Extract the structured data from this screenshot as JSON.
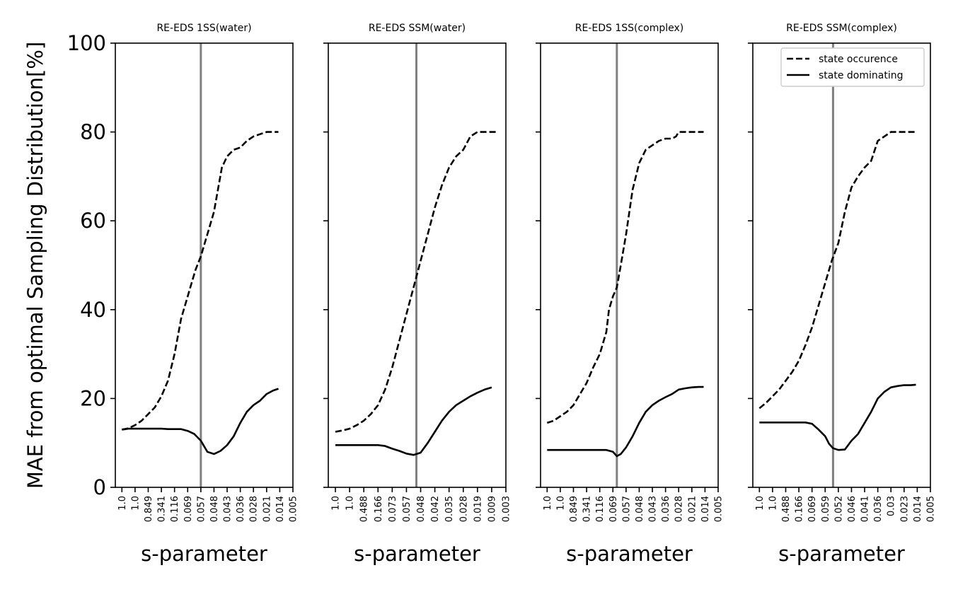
{
  "figure": {
    "ylabel": "MAE from optimal Sampling Distribution[%]"
  },
  "legend": {
    "placement": "upper right of last panel",
    "entries": [
      "state occurence",
      "state dominating"
    ]
  },
  "colors": {
    "line": "#000000",
    "vline": "#808080"
  },
  "chart_data": [
    {
      "type": "line",
      "title": "RE-EDS 1SS(water)",
      "xlabel": "s-parameter",
      "ylim": [
        0,
        100
      ],
      "yticks": [
        0,
        20,
        40,
        60,
        80,
        100
      ],
      "xtick_labels": [
        "1.0",
        "1.0",
        "0.849",
        "0.341",
        "0.116",
        "0.069",
        "0.057",
        "0.048",
        "0.043",
        "0.036",
        "0.028",
        "0.021",
        "0.014",
        "0.005"
      ],
      "xlim": [
        -0.5,
        13
      ],
      "vline_x": 6,
      "series": [
        {
          "name": "state occurence",
          "style": "dashed",
          "x": [
            0,
            0.5,
            1,
            1.5,
            2,
            2.5,
            3,
            3.5,
            4,
            4.5,
            5,
            5.3,
            5.6,
            6,
            6.3,
            6.6,
            7,
            7.3,
            7.6,
            8,
            8.5,
            9,
            9.5,
            10,
            10.5,
            11,
            11.5,
            11.9
          ],
          "y": [
            13,
            13.3,
            14,
            15,
            16.5,
            18,
            20.5,
            24,
            30,
            38,
            43,
            46,
            49,
            52,
            55,
            58,
            62,
            67,
            72,
            74.5,
            76,
            76.5,
            78,
            79,
            79.5,
            80,
            80,
            80
          ]
        },
        {
          "name": "state dominating",
          "style": "solid",
          "x": [
            0,
            0.5,
            1,
            1.5,
            2,
            2.5,
            3,
            3.5,
            4,
            4.5,
            5,
            5.5,
            6,
            6.5,
            7,
            7.5,
            8,
            8.5,
            9,
            9.5,
            10,
            10.5,
            11,
            11.5,
            11.9
          ],
          "y": [
            13,
            13.2,
            13.2,
            13.2,
            13.2,
            13.2,
            13.2,
            13.1,
            13.1,
            13.1,
            12.7,
            12,
            10.5,
            8,
            7.5,
            8.2,
            9.5,
            11.5,
            14.5,
            17,
            18.5,
            19.5,
            21,
            21.8,
            22.2
          ]
        }
      ]
    },
    {
      "type": "line",
      "title": "RE-EDS SSM(water)",
      "xlabel": "s-parameter",
      "ylim": [
        0,
        100
      ],
      "yticks": [
        0,
        20,
        40,
        60,
        80,
        100
      ],
      "xtick_labels": [
        "1.0",
        "1.0",
        "0.488",
        "0.166",
        "0.073",
        "0.057",
        "0.048",
        "0.042",
        "0.035",
        "0.028",
        "0.019",
        "0.009",
        "0.003"
      ],
      "xlim": [
        -0.5,
        12
      ],
      "vline_x": 5.7,
      "series": [
        {
          "name": "state occurence",
          "style": "dashed",
          "x": [
            0,
            0.5,
            1,
            1.5,
            2,
            2.5,
            3,
            3.5,
            4,
            4.5,
            5,
            5.5,
            6,
            6.5,
            7,
            7.5,
            8,
            8.5,
            9,
            9.5,
            10,
            10.5,
            11,
            11.3
          ],
          "y": [
            12.5,
            12.8,
            13.2,
            14,
            15,
            16.5,
            18.5,
            22,
            27,
            33,
            39,
            45,
            51,
            57,
            63,
            68,
            72,
            74.5,
            76,
            79,
            80,
            80,
            80,
            80
          ]
        },
        {
          "name": "state dominating",
          "style": "solid",
          "x": [
            0,
            0.5,
            1,
            1.5,
            2,
            2.5,
            3,
            3.5,
            4,
            4.5,
            5,
            5.5,
            6,
            6.5,
            7,
            7.5,
            8,
            8.5,
            9,
            9.5,
            10,
            10.5,
            11
          ],
          "y": [
            9.5,
            9.5,
            9.5,
            9.5,
            9.5,
            9.5,
            9.5,
            9.3,
            8.7,
            8.2,
            7.6,
            7.3,
            7.8,
            10,
            12.5,
            15,
            17,
            18.5,
            19.5,
            20.5,
            21.3,
            22,
            22.5
          ]
        }
      ]
    },
    {
      "type": "line",
      "title": "RE-EDS 1SS(complex)",
      "xlabel": "s-parameter",
      "ylim": [
        0,
        100
      ],
      "yticks": [
        0,
        20,
        40,
        60,
        80,
        100
      ],
      "xtick_labels": [
        "1.0",
        "1.0",
        "0.849",
        "0.341",
        "0.116",
        "0.069",
        "0.057",
        "0.048",
        "0.043",
        "0.036",
        "0.028",
        "0.021",
        "0.014",
        "0.005"
      ],
      "xlim": [
        -0.5,
        13
      ],
      "vline_x": 5.3,
      "series": [
        {
          "name": "state occurence",
          "style": "dashed",
          "x": [
            0,
            0.5,
            1,
            1.5,
            2,
            2.5,
            3,
            3.5,
            4,
            4.5,
            4.7,
            5,
            5.3,
            5.6,
            6,
            6.5,
            7,
            7.5,
            8,
            8.5,
            9,
            9.5,
            9.8,
            10,
            10.5,
            11,
            11.5,
            11.9
          ],
          "y": [
            14.5,
            15,
            16,
            17,
            18.5,
            21,
            23.5,
            27,
            30,
            35,
            40,
            43,
            45,
            50,
            57,
            67,
            73,
            76,
            77,
            78,
            78.5,
            78.5,
            79,
            80,
            80,
            80,
            80,
            80
          ]
        },
        {
          "name": "state dominating",
          "style": "solid",
          "x": [
            0,
            0.5,
            1,
            1.5,
            2,
            2.5,
            3,
            3.5,
            4,
            4.5,
            5,
            5.3,
            5.6,
            6,
            6.5,
            7,
            7.5,
            8,
            8.5,
            9,
            9.5,
            10,
            10.5,
            11,
            11.5,
            11.9
          ],
          "y": [
            8.4,
            8.4,
            8.4,
            8.4,
            8.4,
            8.4,
            8.4,
            8.4,
            8.4,
            8.4,
            8,
            7,
            7.5,
            9,
            11.5,
            14.5,
            17,
            18.5,
            19.5,
            20.3,
            21,
            22,
            22.3,
            22.5,
            22.6,
            22.6
          ]
        }
      ]
    },
    {
      "type": "line",
      "title": "RE-EDS SSM(complex)",
      "xlabel": "s-parameter",
      "ylim": [
        0,
        100
      ],
      "yticks": [
        0,
        20,
        40,
        60,
        80,
        100
      ],
      "xtick_labels": [
        "1.0",
        "1.0",
        "0.488",
        "0.166",
        "0.069",
        "0.059",
        "0.052",
        "0.046",
        "0.041",
        "0.036",
        "0.03",
        "0.023",
        "0.014",
        "0.005"
      ],
      "xlim": [
        -0.5,
        13
      ],
      "vline_x": 5.6,
      "series": [
        {
          "name": "state occurence",
          "style": "dashed",
          "x": [
            0,
            0.5,
            1,
            1.5,
            2,
            2.5,
            3,
            3.5,
            4,
            4.5,
            5,
            5.5,
            6,
            6.5,
            7,
            7.5,
            8,
            8.5,
            9,
            9.5,
            10,
            10.5,
            11,
            11.5,
            11.9
          ],
          "y": [
            17.8,
            19,
            20.5,
            22,
            24,
            26,
            28.5,
            32,
            36,
            41,
            46,
            51,
            55,
            62,
            67.5,
            70,
            72,
            73.5,
            78,
            79,
            80,
            80,
            80,
            80,
            80
          ]
        },
        {
          "name": "state dominating",
          "style": "solid",
          "x": [
            0,
            0.5,
            1,
            1.5,
            2,
            2.5,
            3,
            3.5,
            4,
            4.5,
            5,
            5.3,
            5.6,
            6,
            6.5,
            7,
            7.5,
            8,
            8.5,
            9,
            9.5,
            10,
            10.5,
            11,
            11.5,
            11.9
          ],
          "y": [
            14.6,
            14.6,
            14.6,
            14.6,
            14.6,
            14.6,
            14.6,
            14.6,
            14.3,
            13,
            11.5,
            9.8,
            8.8,
            8.4,
            8.5,
            10.5,
            12,
            14.5,
            17,
            20,
            21.5,
            22.5,
            22.8,
            23,
            23,
            23.1
          ]
        }
      ]
    }
  ]
}
